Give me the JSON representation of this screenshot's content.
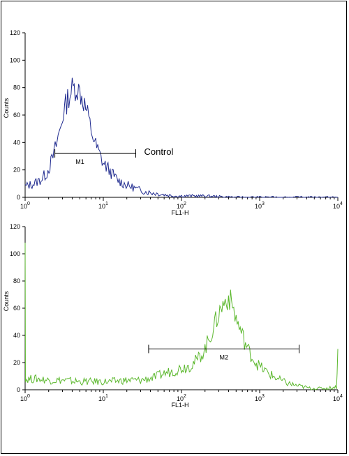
{
  "chart_data": [
    {
      "type": "line",
      "title": "",
      "xlabel": "FL1-H",
      "ylabel": "Counts",
      "xscale": "log",
      "xlim": [
        1,
        10000
      ],
      "ylim": [
        0,
        120
      ],
      "y_ticks": [
        0,
        20,
        40,
        60,
        80,
        100,
        120
      ],
      "x_ticks": [
        {
          "value": 1,
          "label": "10",
          "exp": "0"
        },
        {
          "value": 10,
          "label": "10",
          "exp": "1"
        },
        {
          "value": 100,
          "label": "10",
          "exp": "2"
        },
        {
          "value": 1000,
          "label": "10",
          "exp": "3"
        },
        {
          "value": 10000,
          "label": "10",
          "exp": "4"
        }
      ],
      "color": "#1f2a8f",
      "series": [
        {
          "x": [
            1.0,
            1.3,
            1.6,
            1.9,
            2.2,
            2.5,
            2.8,
            3.1,
            3.5,
            4.0,
            4.5,
            5.0,
            5.6,
            6.3,
            7.0,
            8.0,
            9.0,
            10.0,
            11.5,
            13.0,
            15.0,
            18.0,
            22.0,
            27.0,
            35.0,
            45.0,
            60.0,
            80.0,
            100.0,
            200.0,
            500.0,
            1000.0,
            3000.0,
            10000.0
          ],
          "y": [
            8,
            10,
            13,
            18,
            27,
            38,
            50,
            62,
            72,
            79,
            80,
            77,
            70,
            60,
            49,
            38,
            31,
            25,
            21,
            17,
            13,
            10,
            8,
            6,
            4,
            3,
            2,
            1,
            1,
            1,
            0,
            0,
            0,
            0
          ]
        }
      ],
      "gate": {
        "label": "M1",
        "x_start": 2.4,
        "x_end": 26,
        "y": 32
      },
      "annotation": "Control"
    },
    {
      "type": "line",
      "title": "",
      "xlabel": "FL1-H",
      "ylabel": "Counts",
      "xscale": "log",
      "xlim": [
        1,
        10000
      ],
      "ylim": [
        0,
        120
      ],
      "y_ticks": [
        0,
        20,
        40,
        60,
        80,
        100,
        120
      ],
      "x_ticks": [
        {
          "value": 1,
          "label": "10",
          "exp": "0"
        },
        {
          "value": 10,
          "label": "10",
          "exp": "1"
        },
        {
          "value": 100,
          "label": "10",
          "exp": "2"
        },
        {
          "value": 1000,
          "label": "10",
          "exp": "3"
        },
        {
          "value": 10000,
          "label": "10",
          "exp": "4"
        }
      ],
      "color": "#5cb82e",
      "series": [
        {
          "x": [
            1.0,
            1.01,
            1.05,
            1.5,
            2.0,
            3.0,
            5.0,
            8.0,
            12.0,
            20.0,
            30.0,
            45.0,
            60.0,
            80.0,
            100.0,
            130.0,
            160.0,
            200.0,
            250.0,
            300.0,
            350.0,
            400.0,
            450.0,
            500.0,
            600.0,
            700.0,
            850.0,
            1000.0,
            1300.0,
            1700.0,
            2200.0,
            3000.0,
            4500.0,
            7000.0,
            9600.0,
            9800.0,
            10000.0
          ],
          "y": [
            120,
            6,
            8,
            8,
            7,
            7,
            6,
            6,
            6,
            7,
            7,
            9,
            12,
            14,
            16,
            18,
            22,
            30,
            44,
            56,
            64,
            68,
            62,
            52,
            40,
            30,
            22,
            17,
            12,
            8,
            5,
            3,
            1,
            1,
            2,
            12,
            30
          ]
        }
      ],
      "gate": {
        "label": "M2",
        "x_start": 38,
        "x_end": 3200,
        "y": 30
      }
    }
  ]
}
